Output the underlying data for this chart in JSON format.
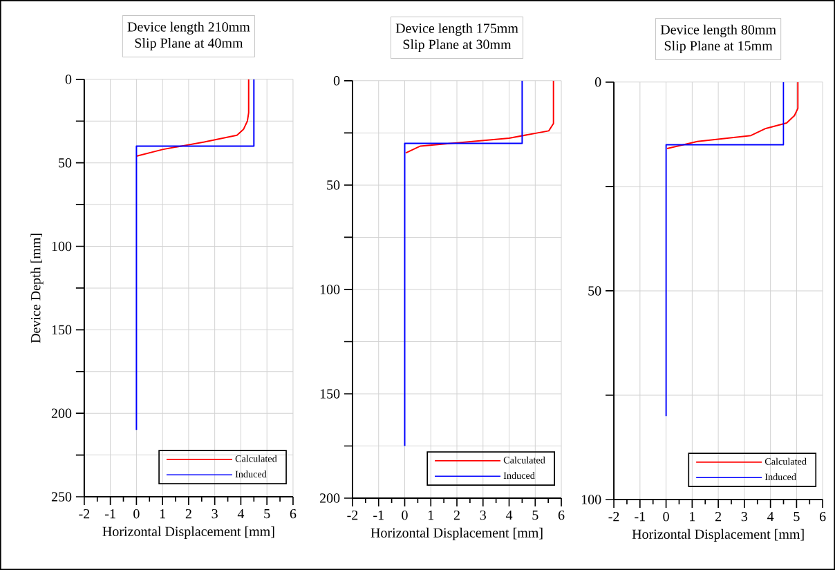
{
  "chart_data": [
    {
      "type": "line",
      "title": "Device length 210mm",
      "subtitle": "Slip Plane at 40mm",
      "xlabel": "Horizontal Displacement [mm]",
      "ylabel": "Device Depth [mm]",
      "xlim": [
        -2,
        6
      ],
      "xticks": [
        -2,
        -1,
        0,
        1,
        2,
        3,
        4,
        5,
        6
      ],
      "ylim": [
        250,
        0
      ],
      "yticks": [
        0,
        {
          "value": 25,
          "label": null
        },
        50,
        {
          "value": 75,
          "label": null
        },
        100,
        {
          "value": 125,
          "label": null
        },
        150,
        {
          "value": 175,
          "label": null
        },
        200,
        {
          "value": 225,
          "label": null
        },
        250
      ],
      "grid": true,
      "legend": "bottom right",
      "series": [
        {
          "name": "Calculated",
          "color": "#ff0000",
          "x": [
            4.3,
            4.3,
            4.25,
            4.1,
            3.85,
            2.6,
            1.0,
            0.0
          ],
          "values": [
            0,
            20,
            25,
            30,
            33.5,
            37.5,
            42,
            46
          ]
        },
        {
          "name": "Induced",
          "color": "#0000ff",
          "x": [
            4.5,
            4.5,
            0,
            0
          ],
          "values": [
            0,
            40,
            40,
            210
          ]
        }
      ]
    },
    {
      "type": "line",
      "title": "Device length 175mm",
      "subtitle": "Slip Plane at 30mm",
      "xlabel": "Horizontal Displacement [mm]",
      "xlim": [
        -2,
        6
      ],
      "xticks": [
        -2,
        -1,
        0,
        1,
        2,
        3,
        4,
        5,
        6
      ],
      "ylim": [
        200,
        0
      ],
      "yticks": [
        0,
        {
          "value": 25,
          "label": null
        },
        50,
        {
          "value": 75,
          "label": null
        },
        100,
        {
          "value": 125,
          "label": null
        },
        150,
        {
          "value": 175,
          "label": null
        },
        200
      ],
      "grid": true,
      "legend": "bottom right",
      "series": [
        {
          "name": "Calculated",
          "color": "#ff0000",
          "x": [
            5.7,
            5.7,
            5.52,
            4.0,
            0.6,
            0.04
          ],
          "values": [
            0,
            20.5,
            24,
            27.5,
            31.3,
            34.6
          ]
        },
        {
          "name": "Induced",
          "color": "#0000ff",
          "x": [
            4.5,
            4.5,
            0,
            0
          ],
          "values": [
            0,
            30,
            30,
            175
          ]
        }
      ]
    },
    {
      "type": "line",
      "title": "Device length 80mm",
      "subtitle": "Slip Plane at 15mm",
      "xlabel": "Horizontal Displacement [mm]",
      "xlim": [
        -2,
        6
      ],
      "xticks": [
        -2,
        -1,
        0,
        1,
        2,
        3,
        4,
        5,
        6
      ],
      "ylim": [
        100,
        0
      ],
      "yticks": [
        0,
        {
          "value": 25,
          "label": null
        },
        50,
        {
          "value": 75,
          "label": null
        },
        100
      ],
      "grid": true,
      "legend": "bottom right",
      "series": [
        {
          "name": "Calculated",
          "color": "#ff0000",
          "x": [
            5.05,
            5.05,
            4.92,
            4.62,
            3.82,
            3.25,
            1.2,
            0.04
          ],
          "values": [
            0,
            6.3,
            8,
            9.8,
            11.1,
            12.8,
            14.2,
            15.9
          ]
        },
        {
          "name": "Induced",
          "color": "#0000ff",
          "x": [
            4.5,
            4.5,
            0,
            0
          ],
          "values": [
            0,
            15,
            15,
            80
          ]
        }
      ]
    }
  ]
}
